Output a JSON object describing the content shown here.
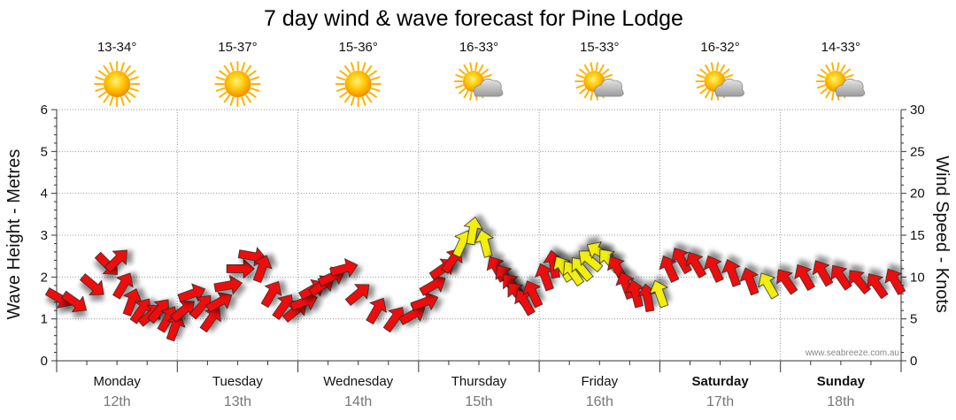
{
  "title": "7 day wind & wave forecast for Pine Lodge",
  "credit": "www.seabreeze.com.au",
  "colors": {
    "arrow_red": "#ee1111",
    "arrow_yellow": "#f2ee0e",
    "grid": "#999999",
    "axis": "#333333"
  },
  "chart_data": {
    "type": "line",
    "ylabel_left": "Wave Height - Metres",
    "ylabel_right": "Wind Speed - Knots",
    "y_left_range": [
      0,
      6
    ],
    "y_left_ticks": [
      "0",
      "1",
      "2",
      "3",
      "4",
      "5",
      "6"
    ],
    "y_right_range": [
      0,
      30
    ],
    "y_right_ticks": [
      "0",
      "5",
      "10",
      "15",
      "20",
      "25",
      "30"
    ],
    "days": [
      {
        "name": "Monday",
        "date": "12th",
        "temps": "13-34°",
        "icon": "sun-icon",
        "weekend": false
      },
      {
        "name": "Tuesday",
        "date": "13th",
        "temps": "15-37°",
        "icon": "sun-icon",
        "weekend": false
      },
      {
        "name": "Wednesday",
        "date": "14th",
        "temps": "15-36°",
        "icon": "sun-icon",
        "weekend": false
      },
      {
        "name": "Thursday",
        "date": "15th",
        "temps": "16-33°",
        "icon": "partly-cloudy-icon",
        "weekend": false
      },
      {
        "name": "Friday",
        "date": "16th",
        "temps": "15-33°",
        "icon": "partly-cloudy-icon",
        "weekend": false
      },
      {
        "name": "Saturday",
        "date": "17th",
        "temps": "16-32°",
        "icon": "partly-cloudy-icon",
        "weekend": true
      },
      {
        "name": "Sunday",
        "date": "18th",
        "temps": "14-33°",
        "icon": "partly-cloudy-icon",
        "weekend": true
      }
    ],
    "series": [
      {
        "name": "Wind Speed (knots)",
        "t_days": [
          0.02,
          0.15,
          0.3,
          0.42,
          0.5,
          0.55,
          0.62,
          0.7,
          0.78,
          0.85,
          0.92,
          0.98,
          1.05,
          1.12,
          1.2,
          1.28,
          1.35,
          1.42,
          1.52,
          1.62,
          1.7,
          1.78,
          1.88,
          1.98,
          2.05,
          2.12,
          2.2,
          2.28,
          2.38,
          2.5,
          2.65,
          2.8,
          2.95,
          3.05,
          3.12,
          3.2,
          3.28,
          3.36,
          3.45,
          3.55,
          3.65,
          3.72,
          3.78,
          3.82,
          3.88,
          3.95,
          4.05,
          4.12,
          4.2,
          4.28,
          4.35,
          4.42,
          4.5,
          4.58,
          4.65,
          4.72,
          4.8,
          4.9,
          5.0,
          5.08,
          5.18,
          5.3,
          5.45,
          5.6,
          5.75,
          5.9,
          6.05,
          6.2,
          6.35,
          6.5,
          6.65,
          6.8,
          6.95
        ],
        "values": [
          7.5,
          7,
          9,
          11.5,
          12,
          9,
          7,
          6,
          5.5,
          6,
          5,
          4,
          6,
          8,
          6.5,
          5,
          7,
          9,
          11,
          12.5,
          11,
          8,
          6.5,
          6,
          7,
          8.5,
          9,
          10,
          11,
          8,
          6,
          5,
          5.5,
          7,
          9,
          11,
          12,
          14,
          15.5,
          14,
          11,
          10,
          9,
          8,
          7,
          8,
          10,
          11.5,
          11,
          10.5,
          11,
          12,
          13,
          12,
          11,
          9,
          8,
          7.5,
          8,
          11,
          12,
          11.5,
          11,
          10.5,
          9.5,
          9,
          9.5,
          10,
          10.5,
          10,
          9.5,
          9,
          9.5
        ],
        "directions_deg": [
          300,
          305,
          310,
          315,
          225,
          210,
          200,
          215,
          230,
          220,
          210,
          200,
          230,
          250,
          220,
          215,
          240,
          260,
          270,
          280,
          200,
          210,
          215,
          230,
          250,
          240,
          235,
          245,
          255,
          230,
          210,
          215,
          240,
          250,
          240,
          235,
          215,
          205,
          190,
          165,
          150,
          145,
          140,
          140,
          150,
          155,
          160,
          170,
          150,
          145,
          140,
          130,
          120,
          140,
          150,
          160,
          165,
          170,
          160,
          155,
          150,
          150,
          155,
          160,
          160,
          150,
          145,
          150,
          150,
          145,
          140,
          145,
          150
        ],
        "colors": [
          "red",
          "red",
          "red",
          "red",
          "red",
          "red",
          "red",
          "red",
          "red",
          "red",
          "red",
          "red",
          "red",
          "red",
          "red",
          "red",
          "red",
          "red",
          "red",
          "red",
          "red",
          "red",
          "red",
          "red",
          "red",
          "red",
          "red",
          "red",
          "red",
          "red",
          "red",
          "red",
          "red",
          "red",
          "red",
          "red",
          "red",
          "yellow",
          "yellow",
          "yellow",
          "red",
          "red",
          "red",
          "red",
          "red",
          "red",
          "red",
          "red",
          "yellow",
          "yellow",
          "yellow",
          "yellow",
          "yellow",
          "yellow",
          "red",
          "red",
          "red",
          "red",
          "yellow",
          "red",
          "red",
          "red",
          "red",
          "red",
          "red",
          "yellow",
          "red",
          "red",
          "red",
          "red",
          "red",
          "red",
          "red"
        ]
      }
    ]
  }
}
